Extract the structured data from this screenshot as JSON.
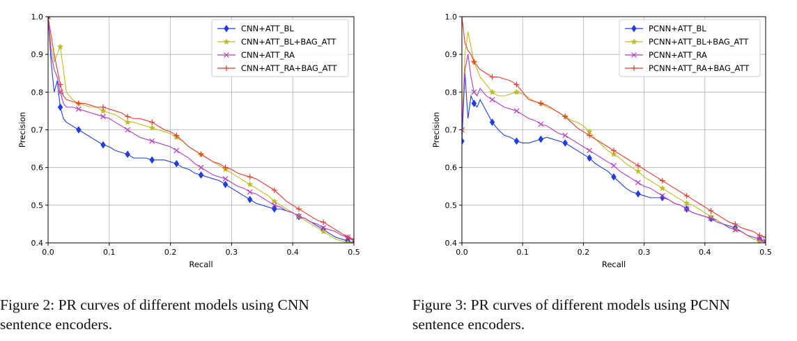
{
  "figures": [
    {
      "caption": "Figure 2:  PR curves of different models using CNN\nsentence encoders."
    },
    {
      "caption": "Figure 3:  PR curves of different models using PCNN\nsentence encoders."
    }
  ],
  "chart_data": [
    {
      "type": "line",
      "title": "",
      "xlabel": "Recall",
      "ylabel": "Precision",
      "xlim": [
        0.0,
        0.5
      ],
      "ylim": [
        0.4,
        1.0
      ],
      "xticks": [
        "0.0",
        "0.1",
        "0.2",
        "0.3",
        "0.4",
        "0.5"
      ],
      "yticks": [
        "0.4",
        "0.5",
        "0.6",
        "0.7",
        "0.8",
        "0.9",
        "1.0"
      ],
      "grid": true,
      "legend": "top-right",
      "series": [
        {
          "name": "CNN+ATT_BL",
          "color": "#1f3fd8",
          "marker": "diamond",
          "x": [
            0.0,
            0.005,
            0.01,
            0.015,
            0.02,
            0.025,
            0.03,
            0.04,
            0.05,
            0.06,
            0.07,
            0.08,
            0.09,
            0.1,
            0.11,
            0.12,
            0.13,
            0.14,
            0.15,
            0.16,
            0.17,
            0.18,
            0.19,
            0.2,
            0.21,
            0.22,
            0.23,
            0.24,
            0.25,
            0.26,
            0.27,
            0.28,
            0.29,
            0.3,
            0.31,
            0.32,
            0.33,
            0.34,
            0.35,
            0.36,
            0.37,
            0.38,
            0.39,
            0.4,
            0.41,
            0.42,
            0.43,
            0.44,
            0.45,
            0.46,
            0.47,
            0.48,
            0.49,
            0.5
          ],
          "y": [
            1.0,
            0.88,
            0.8,
            0.83,
            0.76,
            0.73,
            0.72,
            0.71,
            0.7,
            0.69,
            0.68,
            0.67,
            0.66,
            0.655,
            0.645,
            0.64,
            0.635,
            0.625,
            0.625,
            0.625,
            0.62,
            0.62,
            0.62,
            0.615,
            0.61,
            0.6,
            0.595,
            0.585,
            0.58,
            0.575,
            0.57,
            0.565,
            0.555,
            0.545,
            0.535,
            0.525,
            0.515,
            0.505,
            0.5,
            0.495,
            0.49,
            0.49,
            0.485,
            0.48,
            0.47,
            0.465,
            0.455,
            0.445,
            0.435,
            0.425,
            0.415,
            0.41,
            0.405,
            0.4
          ]
        },
        {
          "name": "CNN+ATT_BL+BAG_ATT",
          "color": "#bcbd22",
          "marker": "star",
          "x": [
            0.0,
            0.005,
            0.01,
            0.015,
            0.02,
            0.025,
            0.03,
            0.04,
            0.05,
            0.06,
            0.07,
            0.08,
            0.09,
            0.1,
            0.11,
            0.12,
            0.13,
            0.14,
            0.15,
            0.16,
            0.17,
            0.18,
            0.19,
            0.2,
            0.21,
            0.22,
            0.23,
            0.24,
            0.25,
            0.26,
            0.27,
            0.28,
            0.29,
            0.3,
            0.31,
            0.32,
            0.33,
            0.34,
            0.35,
            0.36,
            0.37,
            0.38,
            0.39,
            0.4,
            0.41,
            0.42,
            0.43,
            0.44,
            0.45,
            0.46,
            0.47,
            0.48,
            0.49,
            0.5
          ],
          "y": [
            1.0,
            0.92,
            0.88,
            0.9,
            0.92,
            0.86,
            0.8,
            0.78,
            0.77,
            0.765,
            0.76,
            0.76,
            0.75,
            0.745,
            0.74,
            0.73,
            0.72,
            0.72,
            0.715,
            0.71,
            0.705,
            0.7,
            0.695,
            0.69,
            0.68,
            0.67,
            0.655,
            0.645,
            0.635,
            0.625,
            0.615,
            0.605,
            0.595,
            0.585,
            0.575,
            0.565,
            0.555,
            0.545,
            0.535,
            0.525,
            0.51,
            0.5,
            0.49,
            0.48,
            0.47,
            0.46,
            0.45,
            0.44,
            0.43,
            0.42,
            0.41,
            0.405,
            0.4,
            0.4
          ]
        },
        {
          "name": "CNN+ATT_RA",
          "color": "#b43bc4",
          "marker": "x",
          "x": [
            0.0,
            0.005,
            0.01,
            0.015,
            0.02,
            0.025,
            0.03,
            0.04,
            0.05,
            0.06,
            0.07,
            0.08,
            0.09,
            0.1,
            0.11,
            0.12,
            0.13,
            0.14,
            0.15,
            0.16,
            0.17,
            0.18,
            0.19,
            0.2,
            0.21,
            0.22,
            0.23,
            0.24,
            0.25,
            0.26,
            0.27,
            0.28,
            0.29,
            0.3,
            0.31,
            0.32,
            0.33,
            0.34,
            0.35,
            0.36,
            0.37,
            0.38,
            0.39,
            0.4,
            0.41,
            0.42,
            0.43,
            0.44,
            0.45,
            0.46,
            0.47,
            0.48,
            0.49,
            0.5
          ],
          "y": [
            1.0,
            0.9,
            0.86,
            0.84,
            0.8,
            0.77,
            0.76,
            0.76,
            0.755,
            0.75,
            0.745,
            0.74,
            0.735,
            0.73,
            0.72,
            0.71,
            0.7,
            0.69,
            0.68,
            0.675,
            0.67,
            0.665,
            0.66,
            0.655,
            0.645,
            0.635,
            0.625,
            0.61,
            0.6,
            0.59,
            0.58,
            0.575,
            0.57,
            0.56,
            0.55,
            0.545,
            0.535,
            0.53,
            0.52,
            0.51,
            0.5,
            0.495,
            0.485,
            0.48,
            0.47,
            0.465,
            0.455,
            0.45,
            0.44,
            0.435,
            0.43,
            0.42,
            0.415,
            0.405
          ]
        },
        {
          "name": "CNN+ATT_RA+BAG_ATT",
          "color": "#e33b2e",
          "marker": "plus",
          "x": [
            0.0,
            0.005,
            0.01,
            0.015,
            0.02,
            0.025,
            0.03,
            0.04,
            0.05,
            0.06,
            0.07,
            0.08,
            0.09,
            0.1,
            0.11,
            0.12,
            0.13,
            0.14,
            0.15,
            0.16,
            0.17,
            0.18,
            0.19,
            0.2,
            0.21,
            0.22,
            0.23,
            0.24,
            0.25,
            0.26,
            0.27,
            0.28,
            0.29,
            0.3,
            0.31,
            0.32,
            0.33,
            0.34,
            0.35,
            0.36,
            0.37,
            0.38,
            0.39,
            0.4,
            0.41,
            0.42,
            0.43,
            0.44,
            0.45,
            0.46,
            0.47,
            0.48,
            0.49,
            0.5
          ],
          "y": [
            1.0,
            0.95,
            0.9,
            0.86,
            0.82,
            0.79,
            0.78,
            0.775,
            0.77,
            0.77,
            0.765,
            0.76,
            0.76,
            0.755,
            0.75,
            0.745,
            0.735,
            0.73,
            0.73,
            0.725,
            0.72,
            0.71,
            0.7,
            0.695,
            0.685,
            0.67,
            0.655,
            0.645,
            0.635,
            0.625,
            0.615,
            0.61,
            0.6,
            0.595,
            0.585,
            0.58,
            0.575,
            0.57,
            0.56,
            0.55,
            0.54,
            0.525,
            0.51,
            0.5,
            0.49,
            0.48,
            0.47,
            0.46,
            0.455,
            0.445,
            0.435,
            0.425,
            0.415,
            0.41
          ]
        }
      ]
    },
    {
      "type": "line",
      "title": "",
      "xlabel": "Recall",
      "ylabel": "Precision",
      "xlim": [
        0.0,
        0.5
      ],
      "ylim": [
        0.4,
        1.0
      ],
      "xticks": [
        "0.0",
        "0.1",
        "0.2",
        "0.3",
        "0.4",
        "0.5"
      ],
      "yticks": [
        "0.4",
        "0.5",
        "0.6",
        "0.7",
        "0.8",
        "0.9",
        "1.0"
      ],
      "grid": true,
      "legend": "top-right",
      "series": [
        {
          "name": "PCNN+ATT_BL",
          "color": "#1f3fd8",
          "marker": "diamond",
          "x": [
            0.0,
            0.005,
            0.01,
            0.015,
            0.02,
            0.025,
            0.03,
            0.04,
            0.05,
            0.06,
            0.07,
            0.08,
            0.09,
            0.1,
            0.11,
            0.12,
            0.13,
            0.14,
            0.15,
            0.16,
            0.17,
            0.18,
            0.19,
            0.2,
            0.21,
            0.22,
            0.23,
            0.24,
            0.25,
            0.26,
            0.27,
            0.28,
            0.29,
            0.3,
            0.31,
            0.32,
            0.33,
            0.34,
            0.35,
            0.36,
            0.37,
            0.38,
            0.39,
            0.4,
            0.41,
            0.42,
            0.43,
            0.44,
            0.45,
            0.46,
            0.47,
            0.48,
            0.49,
            0.5
          ],
          "y": [
            0.67,
            0.85,
            0.73,
            0.79,
            0.77,
            0.76,
            0.78,
            0.75,
            0.72,
            0.7,
            0.685,
            0.68,
            0.67,
            0.665,
            0.665,
            0.67,
            0.675,
            0.68,
            0.675,
            0.67,
            0.665,
            0.655,
            0.645,
            0.635,
            0.625,
            0.61,
            0.6,
            0.59,
            0.575,
            0.56,
            0.545,
            0.535,
            0.53,
            0.525,
            0.52,
            0.52,
            0.52,
            0.515,
            0.505,
            0.5,
            0.49,
            0.48,
            0.475,
            0.47,
            0.465,
            0.46,
            0.45,
            0.445,
            0.44,
            0.43,
            0.42,
            0.415,
            0.41,
            0.4
          ]
        },
        {
          "name": "PCNN+ATT_BL+BAG_ATT",
          "color": "#bcbd22",
          "marker": "star",
          "x": [
            0.0,
            0.005,
            0.01,
            0.015,
            0.02,
            0.025,
            0.03,
            0.04,
            0.05,
            0.06,
            0.07,
            0.08,
            0.09,
            0.1,
            0.11,
            0.12,
            0.13,
            0.14,
            0.15,
            0.16,
            0.17,
            0.18,
            0.19,
            0.2,
            0.21,
            0.22,
            0.23,
            0.24,
            0.25,
            0.26,
            0.27,
            0.28,
            0.29,
            0.3,
            0.31,
            0.32,
            0.33,
            0.34,
            0.35,
            0.36,
            0.37,
            0.38,
            0.39,
            0.4,
            0.41,
            0.42,
            0.43,
            0.44,
            0.45,
            0.46,
            0.47,
            0.48,
            0.49,
            0.5
          ],
          "y": [
            0.7,
            0.9,
            0.96,
            0.92,
            0.88,
            0.86,
            0.84,
            0.82,
            0.8,
            0.79,
            0.79,
            0.795,
            0.8,
            0.795,
            0.785,
            0.775,
            0.77,
            0.76,
            0.755,
            0.745,
            0.735,
            0.725,
            0.72,
            0.71,
            0.695,
            0.675,
            0.66,
            0.645,
            0.635,
            0.625,
            0.61,
            0.6,
            0.59,
            0.575,
            0.565,
            0.555,
            0.545,
            0.535,
            0.525,
            0.515,
            0.505,
            0.5,
            0.49,
            0.48,
            0.47,
            0.46,
            0.45,
            0.44,
            0.435,
            0.43,
            0.42,
            0.41,
            0.405,
            0.4
          ]
        },
        {
          "name": "PCNN+ATT_RA",
          "color": "#b43bc4",
          "marker": "x",
          "x": [
            0.0,
            0.005,
            0.01,
            0.015,
            0.02,
            0.025,
            0.03,
            0.04,
            0.05,
            0.06,
            0.07,
            0.08,
            0.09,
            0.1,
            0.11,
            0.12,
            0.13,
            0.14,
            0.15,
            0.16,
            0.17,
            0.18,
            0.19,
            0.2,
            0.21,
            0.22,
            0.23,
            0.24,
            0.25,
            0.26,
            0.27,
            0.28,
            0.29,
            0.3,
            0.31,
            0.32,
            0.33,
            0.34,
            0.35,
            0.36,
            0.37,
            0.38,
            0.39,
            0.4,
            0.41,
            0.42,
            0.43,
            0.44,
            0.45,
            0.46,
            0.47,
            0.48,
            0.49,
            0.5
          ],
          "y": [
            0.7,
            0.86,
            0.9,
            0.84,
            0.8,
            0.79,
            0.81,
            0.79,
            0.78,
            0.77,
            0.76,
            0.755,
            0.75,
            0.74,
            0.73,
            0.725,
            0.715,
            0.71,
            0.7,
            0.69,
            0.685,
            0.675,
            0.665,
            0.655,
            0.645,
            0.635,
            0.625,
            0.615,
            0.605,
            0.59,
            0.58,
            0.57,
            0.56,
            0.55,
            0.545,
            0.535,
            0.525,
            0.515,
            0.505,
            0.5,
            0.49,
            0.48,
            0.475,
            0.47,
            0.465,
            0.455,
            0.45,
            0.44,
            0.435,
            0.43,
            0.42,
            0.415,
            0.41,
            0.405
          ]
        },
        {
          "name": "PCNN+ATT_RA+BAG_ATT",
          "color": "#e33b2e",
          "marker": "plus",
          "x": [
            0.0,
            0.005,
            0.01,
            0.015,
            0.02,
            0.025,
            0.03,
            0.04,
            0.05,
            0.06,
            0.07,
            0.08,
            0.09,
            0.1,
            0.11,
            0.12,
            0.13,
            0.14,
            0.15,
            0.16,
            0.17,
            0.18,
            0.19,
            0.2,
            0.21,
            0.22,
            0.23,
            0.24,
            0.25,
            0.26,
            0.27,
            0.28,
            0.29,
            0.3,
            0.31,
            0.32,
            0.33,
            0.34,
            0.35,
            0.36,
            0.37,
            0.38,
            0.39,
            0.4,
            0.41,
            0.42,
            0.43,
            0.44,
            0.45,
            0.46,
            0.47,
            0.48,
            0.49,
            0.5
          ],
          "y": [
            1.0,
            0.93,
            0.91,
            0.9,
            0.88,
            0.87,
            0.86,
            0.85,
            0.84,
            0.84,
            0.835,
            0.83,
            0.82,
            0.8,
            0.78,
            0.775,
            0.77,
            0.765,
            0.755,
            0.745,
            0.735,
            0.72,
            0.705,
            0.695,
            0.685,
            0.675,
            0.665,
            0.655,
            0.645,
            0.635,
            0.625,
            0.615,
            0.605,
            0.595,
            0.585,
            0.575,
            0.565,
            0.555,
            0.545,
            0.535,
            0.525,
            0.515,
            0.505,
            0.495,
            0.485,
            0.475,
            0.465,
            0.455,
            0.45,
            0.44,
            0.435,
            0.43,
            0.42,
            0.415
          ]
        }
      ]
    }
  ]
}
